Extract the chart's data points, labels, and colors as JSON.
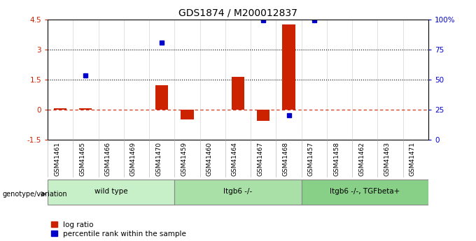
{
  "title": "GDS1874 / M200012837",
  "samples": [
    "GSM41461",
    "GSM41465",
    "GSM41466",
    "GSM41469",
    "GSM41470",
    "GSM41459",
    "GSM41460",
    "GSM41464",
    "GSM41467",
    "GSM41468",
    "GSM41457",
    "GSM41458",
    "GSM41462",
    "GSM41463",
    "GSM41471"
  ],
  "log_ratio": [
    0.08,
    0.07,
    0.0,
    0.0,
    1.2,
    -0.5,
    0.0,
    1.65,
    -0.55,
    4.25,
    0.0,
    0.0,
    0.0,
    0.0,
    0.0
  ],
  "percentile_left_axis": [
    null,
    1.72,
    null,
    null,
    3.35,
    null,
    null,
    null,
    4.45,
    -0.28,
    4.45,
    null,
    null,
    null,
    null
  ],
  "groups": [
    {
      "label": "wild type",
      "start": 0,
      "end": 5,
      "color": "#c8f0c8"
    },
    {
      "label": "Itgb6 -/-",
      "start": 5,
      "end": 10,
      "color": "#a8e0a8"
    },
    {
      "label": "Itgb6 -/-, TGFbeta+",
      "start": 10,
      "end": 15,
      "color": "#88d088"
    }
  ],
  "ylim_left": [
    -1.5,
    4.5
  ],
  "ylim_right": [
    0,
    100
  ],
  "left_ticks": [
    -1.5,
    0.0,
    1.5,
    3.0,
    4.5
  ],
  "left_tick_labels": [
    "-1.5",
    "0",
    "1.5",
    "3",
    "4.5"
  ],
  "right_ticks": [
    0,
    25,
    50,
    75,
    100
  ],
  "right_tick_labels": [
    "0",
    "25",
    "50",
    "75",
    "100%"
  ],
  "hline_zero": 0.0,
  "hline_zero_style": "dashed",
  "hline_zero_color": "#cc2200",
  "hlines_dotted": [
    1.5,
    3.0
  ],
  "hline_dotted_color": "black",
  "bar_color": "#cc2200",
  "marker_color": "#0000cc",
  "legend_items": [
    {
      "label": "log ratio",
      "color": "#cc2200"
    },
    {
      "label": "percentile rank within the sample",
      "color": "#0000cc"
    }
  ],
  "group_label_prefix": "genotype/variation",
  "bar_width": 0.5,
  "marker_size": 5,
  "bg_color": "#f0f0f0"
}
